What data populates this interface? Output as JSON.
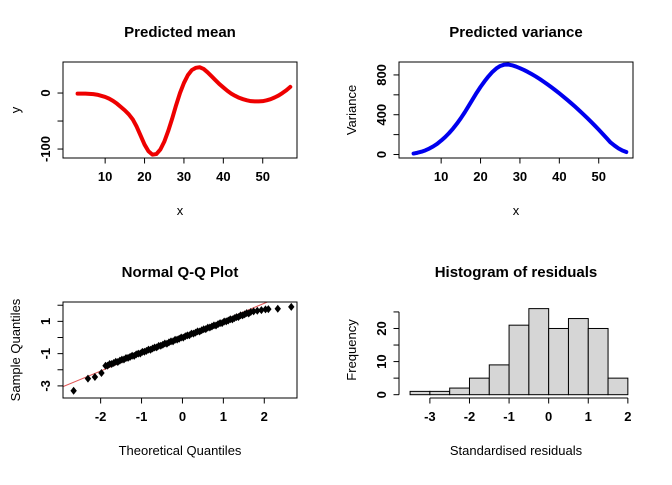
{
  "figure": {
    "background": "#ffffff",
    "text_color": "#000000"
  },
  "chart_data": [
    {
      "type": "line",
      "title": "Predicted mean",
      "xlabel": "x",
      "ylabel": "y",
      "color": "#ee0000",
      "line_width": 4,
      "xlim": [
        -0.7,
        58.7
      ],
      "ylim": [
        -116,
        55.4
      ],
      "box": true,
      "xticks": [
        {
          "v": 10,
          "label": "10"
        },
        {
          "v": 20,
          "label": "20"
        },
        {
          "v": 30,
          "label": "30"
        },
        {
          "v": 40,
          "label": "40"
        },
        {
          "v": 50,
          "label": "50"
        }
      ],
      "yticks": [
        {
          "v": 0,
          "label": "0"
        },
        {
          "v": -50
        },
        {
          "v": -100,
          "label": "-100"
        }
      ],
      "x": [
        3,
        4,
        5,
        6,
        7,
        8,
        9,
        10,
        11,
        12,
        13,
        14,
        15,
        16,
        17,
        18,
        19,
        20,
        21,
        22,
        23,
        24,
        25,
        26,
        27,
        28,
        29,
        30,
        31,
        32,
        33,
        34,
        35,
        36,
        37,
        38,
        39,
        40,
        41,
        42,
        43,
        44,
        45,
        46,
        47,
        48,
        49,
        50,
        51,
        52,
        53,
        54,
        55,
        56,
        57
      ],
      "y": [
        -1,
        -1,
        -1,
        -1.5,
        -2,
        -3,
        -5,
        -7,
        -10,
        -14,
        -19,
        -25,
        -31,
        -38,
        -47,
        -60,
        -76,
        -92,
        -104,
        -110,
        -109,
        -101,
        -87,
        -68,
        -46,
        -22,
        0,
        18,
        32,
        41,
        45,
        46,
        43,
        37,
        30,
        23,
        16,
        10,
        4,
        -1,
        -5,
        -8.5,
        -11,
        -13,
        -14.5,
        -15,
        -15,
        -14.5,
        -13,
        -11,
        -8,
        -4.5,
        0,
        5,
        11
      ]
    },
    {
      "type": "line",
      "title": "Predicted variance",
      "xlabel": "x",
      "ylabel": "Variance",
      "color": "#0000ee",
      "line_width": 4,
      "xlim": [
        -0.7,
        58.7
      ],
      "ylim": [
        -35,
        930
      ],
      "box": true,
      "xticks": [
        {
          "v": 10,
          "label": "10"
        },
        {
          "v": 20,
          "label": "20"
        },
        {
          "v": 30,
          "label": "30"
        },
        {
          "v": 40,
          "label": "40"
        },
        {
          "v": 50,
          "label": "50"
        }
      ],
      "yticks": [
        {
          "v": 0,
          "label": "0"
        },
        {
          "v": 200
        },
        {
          "v": 400,
          "label": "400"
        },
        {
          "v": 600
        },
        {
          "v": 800,
          "label": "800"
        }
      ],
      "x": [
        3,
        4,
        5,
        6,
        7,
        8,
        9,
        10,
        11,
        12,
        13,
        14,
        15,
        16,
        17,
        18,
        19,
        20,
        21,
        22,
        23,
        24,
        25,
        26,
        27,
        28,
        29,
        30,
        31,
        32,
        33,
        34,
        35,
        36,
        37,
        38,
        39,
        40,
        41,
        42,
        43,
        44,
        45,
        46,
        47,
        48,
        49,
        50,
        51,
        52,
        53,
        54,
        55,
        56,
        57
      ],
      "y": [
        10,
        18,
        28,
        42,
        60,
        82,
        108,
        140,
        175,
        215,
        260,
        310,
        365,
        425,
        490,
        555,
        620,
        680,
        735,
        785,
        830,
        865,
        890,
        903,
        905,
        897,
        884,
        868,
        850,
        830,
        808,
        785,
        760,
        733,
        705,
        676,
        646,
        615,
        583,
        550,
        516,
        481,
        445,
        408,
        370,
        331,
        291,
        250,
        208,
        165,
        121,
        90,
        62,
        40,
        25
      ]
    },
    {
      "type": "scatter",
      "title": "Normal Q-Q Plot",
      "xlabel": "Theoretical Quantiles",
      "ylabel": "Sample Quantiles",
      "point_color": "#000000",
      "xlim": [
        -2.92,
        2.8
      ],
      "ylim": [
        -3.75,
        2.2
      ],
      "box": true,
      "xticks": [
        {
          "v": -2,
          "label": "-2"
        },
        {
          "v": -1,
          "label": "-1"
        },
        {
          "v": 0,
          "label": "0"
        },
        {
          "v": 1,
          "label": "1"
        },
        {
          "v": 2,
          "label": "2"
        }
      ],
      "yticks": [
        {
          "v": 2
        },
        {
          "v": 1,
          "label": "1"
        },
        {
          "v": 0
        },
        {
          "v": -1,
          "label": "-1"
        },
        {
          "v": -2
        },
        {
          "v": -3,
          "label": "-3"
        }
      ],
      "refline": {
        "slope": 1.05,
        "intercept": 0.02,
        "color": "#e05555"
      },
      "points": [
        [
          -2.66,
          -3.3
        ],
        [
          -2.31,
          -2.55
        ],
        [
          -2.14,
          -2.45
        ],
        [
          -1.98,
          -2.2
        ],
        [
          -1.88,
          -1.75
        ],
        [
          -1.83,
          -1.74
        ],
        [
          -1.78,
          -1.64
        ],
        [
          -1.73,
          -1.64
        ],
        [
          -1.68,
          -1.58
        ],
        [
          -1.63,
          -1.5
        ],
        [
          -1.58,
          -1.52
        ],
        [
          -1.53,
          -1.43
        ],
        [
          -1.48,
          -1.37
        ],
        [
          -1.43,
          -1.36
        ],
        [
          -1.38,
          -1.27
        ],
        [
          -1.33,
          -1.26
        ],
        [
          -1.28,
          -1.2
        ],
        [
          -1.23,
          -1.13
        ],
        [
          -1.18,
          -1.14
        ],
        [
          -1.13,
          -1.05
        ],
        [
          -1.08,
          -1.0
        ],
        [
          -1.03,
          -0.99
        ],
        [
          -0.98,
          -0.89
        ],
        [
          -0.93,
          -0.88
        ],
        [
          -0.88,
          -0.83
        ],
        [
          -0.83,
          -0.75
        ],
        [
          -0.78,
          -0.76
        ],
        [
          -0.73,
          -0.68
        ],
        [
          -0.68,
          -0.62
        ],
        [
          -0.63,
          -0.61
        ],
        [
          -0.58,
          -0.52
        ],
        [
          -0.53,
          -0.51
        ],
        [
          -0.48,
          -0.45
        ],
        [
          -0.43,
          -0.37
        ],
        [
          -0.38,
          -0.39
        ],
        [
          -0.33,
          -0.3
        ],
        [
          -0.28,
          -0.24
        ],
        [
          -0.23,
          -0.24
        ],
        [
          -0.18,
          -0.14
        ],
        [
          -0.13,
          -0.13
        ],
        [
          -0.08,
          -0.08
        ],
        [
          -0.03,
          0.0
        ],
        [
          0.02,
          -0.01
        ],
        [
          0.07,
          0.08
        ],
        [
          0.12,
          0.13
        ],
        [
          0.17,
          0.14
        ],
        [
          0.22,
          0.24
        ],
        [
          0.27,
          0.24
        ],
        [
          0.32,
          0.3
        ],
        [
          0.37,
          0.38
        ],
        [
          0.42,
          0.37
        ],
        [
          0.47,
          0.45
        ],
        [
          0.52,
          0.51
        ],
        [
          0.57,
          0.52
        ],
        [
          0.62,
          0.61
        ],
        [
          0.67,
          0.62
        ],
        [
          0.72,
          0.68
        ],
        [
          0.77,
          0.75
        ],
        [
          0.82,
          0.74
        ],
        [
          0.87,
          0.83
        ],
        [
          0.92,
          0.89
        ],
        [
          0.97,
          0.89
        ],
        [
          1.02,
          0.99
        ],
        [
          1.07,
          1.0
        ],
        [
          1.12,
          1.05
        ],
        [
          1.17,
          1.13
        ],
        [
          1.22,
          1.12
        ],
        [
          1.27,
          1.2
        ],
        [
          1.32,
          1.26
        ],
        [
          1.37,
          1.27
        ],
        [
          1.42,
          1.37
        ],
        [
          1.47,
          1.37
        ],
        [
          1.52,
          1.43
        ],
        [
          1.57,
          1.51
        ],
        [
          1.62,
          1.49
        ],
        [
          1.67,
          1.58
        ],
        [
          1.74,
          1.62
        ],
        [
          1.83,
          1.66
        ],
        [
          1.93,
          1.7
        ],
        [
          2.03,
          1.74
        ],
        [
          2.1,
          1.76
        ],
        [
          2.33,
          1.78
        ],
        [
          2.66,
          1.9
        ]
      ]
    },
    {
      "type": "histogram",
      "title": "Histogram of residuals",
      "xlabel": "Standardised residuals",
      "ylabel": "Frequency",
      "fill": "#d6d6d6",
      "stroke": "#000000",
      "xlim": [
        -3.78,
        2.13
      ],
      "ylim": [
        -1,
        28
      ],
      "box": false,
      "bin_start": -3.5,
      "bin_width": 0.5,
      "counts": [
        1,
        1,
        2,
        5,
        9,
        21,
        26,
        20,
        23,
        20,
        5
      ],
      "xticks": [
        {
          "v": -3,
          "label": "-3"
        },
        {
          "v": -2,
          "label": "-2"
        },
        {
          "v": -1,
          "label": "-1"
        },
        {
          "v": 0,
          "label": "0"
        },
        {
          "v": 1,
          "label": "1"
        },
        {
          "v": 2,
          "label": "2"
        }
      ],
      "yticks": [
        {
          "v": 0,
          "label": "0"
        },
        {
          "v": 5
        },
        {
          "v": 10,
          "label": "10"
        },
        {
          "v": 15
        },
        {
          "v": 20,
          "label": "20"
        },
        {
          "v": 25
        }
      ]
    }
  ]
}
